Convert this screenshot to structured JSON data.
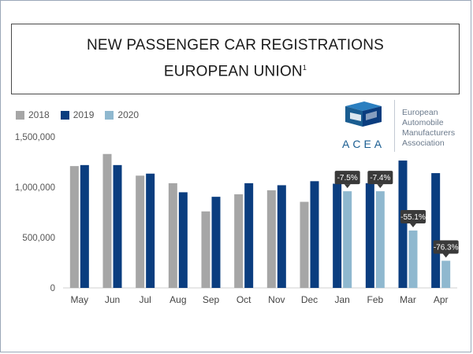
{
  "header": {
    "title_line1": "NEW PASSENGER CAR REGISTRATIONS",
    "title_line2": "EUROPEAN UNION",
    "title_footnote": "1"
  },
  "logo": {
    "acronym": "ACEA",
    "line1": "European",
    "line2": "Automobile",
    "line3": "Manufacturers",
    "line4": "Association"
  },
  "colors": {
    "2018": "#a6a6a6",
    "2019": "#0a3d7f",
    "2020": "#8fb8cf",
    "callout": "#3a3a3a"
  },
  "chart_data": {
    "type": "bar",
    "categories": [
      "May",
      "Jun",
      "Jul",
      "Aug",
      "Sep",
      "Oct",
      "Nov",
      "Dec",
      "Jan",
      "Feb",
      "Mar",
      "Apr"
    ],
    "series": [
      {
        "name": "2018",
        "values": [
          1210000,
          1330000,
          1115000,
          1040000,
          760000,
          930000,
          970000,
          855000,
          null,
          null,
          null,
          null
        ]
      },
      {
        "name": "2019",
        "values": [
          1220000,
          1220000,
          1135000,
          950000,
          905000,
          1040000,
          1020000,
          1060000,
          1035000,
          1040000,
          1265000,
          1140000
        ]
      },
      {
        "name": "2020",
        "values": [
          null,
          null,
          null,
          null,
          null,
          null,
          null,
          null,
          960000,
          960000,
          570000,
          270000
        ]
      }
    ],
    "annotations": [
      {
        "category": "Jan",
        "series": "2020",
        "text": "-7.5%"
      },
      {
        "category": "Feb",
        "series": "2020",
        "text": "-7.4%"
      },
      {
        "category": "Mar",
        "series": "2020",
        "text": "-55.1%"
      },
      {
        "category": "Apr",
        "series": "2020",
        "text": "-76.3%"
      }
    ],
    "yticks": [
      0,
      500000,
      1000000,
      1500000
    ],
    "ytick_labels": [
      "0",
      "500,000",
      "1,000,000",
      "1,500,000"
    ],
    "ylim": [
      0,
      1500000
    ],
    "grid": false,
    "legend_position": "top-left"
  }
}
